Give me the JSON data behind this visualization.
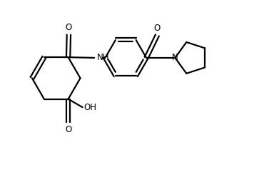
{
  "background_color": "#ffffff",
  "line_color": "#000000",
  "line_width": 1.6,
  "font_size": 8.5,
  "figsize": [
    3.84,
    2.38
  ],
  "dpi": 100,
  "xlim": [
    0,
    10
  ],
  "ylim": [
    0,
    6.2
  ]
}
